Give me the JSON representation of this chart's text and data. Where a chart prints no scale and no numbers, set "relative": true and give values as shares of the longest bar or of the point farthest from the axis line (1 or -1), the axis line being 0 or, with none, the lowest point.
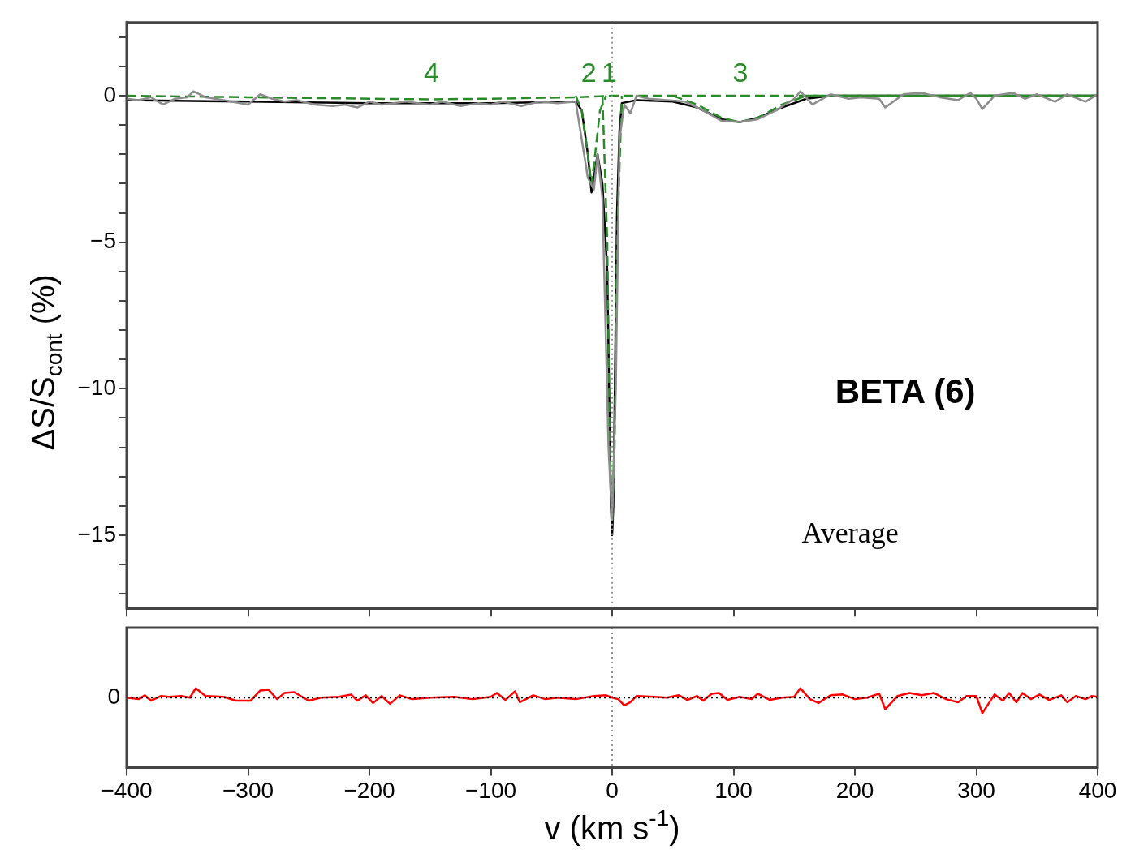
{
  "chart_data": [
    {
      "type": "line",
      "ylabel": "ΔS/S$_{cont}$ (%)",
      "xlim": [
        -400,
        400
      ],
      "xticks": [
        -400,
        -300,
        -200,
        -100,
        0,
        100,
        200,
        300,
        400
      ],
      "ylim": [
        -17.5,
        2.5
      ],
      "yticks": [
        {
          "value": -17,
          "label": null
        },
        {
          "value": -16,
          "label": null
        },
        -15,
        {
          "value": -14,
          "label": null
        },
        {
          "value": -13,
          "label": null
        },
        {
          "value": -12,
          "label": null
        },
        {
          "value": -11,
          "label": null
        },
        -10,
        {
          "value": -9,
          "label": null
        },
        {
          "value": -8,
          "label": null
        },
        {
          "value": -7,
          "label": null
        },
        {
          "value": -6,
          "label": null
        },
        -5,
        {
          "value": -4,
          "label": null
        },
        {
          "value": -3,
          "label": null
        },
        {
          "value": -2,
          "label": null
        },
        {
          "value": -1,
          "label": null
        },
        0,
        {
          "value": 1,
          "label": null
        },
        {
          "value": 2,
          "label": null
        }
      ],
      "tick_labels": "y",
      "marker": "none",
      "series": [
        {
          "color": "#8c8c8c",
          "x": [
            -400,
            -390,
            -380,
            -370,
            -360,
            -350,
            -345,
            -335,
            -320,
            -300,
            -290,
            -280,
            -270,
            -260,
            -245,
            -230,
            -220,
            -210,
            -200,
            -190,
            -180,
            -170,
            -160,
            -150,
            -140,
            -125,
            -110,
            -100,
            -90,
            -75,
            -60,
            -45,
            -30,
            -20,
            -15,
            -12,
            -8,
            -3,
            0,
            3,
            6,
            10,
            15,
            20,
            30,
            45,
            60,
            75,
            90,
            105,
            120,
            135,
            150,
            155,
            165,
            180,
            195,
            205,
            220,
            225,
            240,
            255,
            270,
            285,
            295,
            300,
            305,
            315,
            330,
            340,
            350,
            365,
            375,
            390,
            400
          ],
          "values": [
            -0.1,
            -0.15,
            -0.05,
            -0.3,
            -0.1,
            -0.05,
            0.15,
            -0.05,
            -0.15,
            -0.3,
            0.05,
            -0.1,
            -0.2,
            -0.15,
            -0.3,
            -0.35,
            -0.3,
            -0.4,
            -0.2,
            -0.3,
            -0.25,
            -0.2,
            -0.25,
            -0.3,
            -0.2,
            -0.35,
            -0.25,
            -0.3,
            -0.2,
            -0.35,
            -0.2,
            -0.25,
            -0.2,
            -2.8,
            -3.2,
            -2.0,
            -3.5,
            -12,
            -14.5,
            -10,
            -1.5,
            -0.3,
            -0.6,
            0,
            -0.1,
            -0.15,
            -0.2,
            -0.5,
            -0.85,
            -0.9,
            -0.8,
            -0.5,
            -0.1,
            0.15,
            -0.3,
            0.05,
            -0.1,
            -0.05,
            -0.1,
            -0.4,
            0.05,
            0.1,
            -0.05,
            -0.15,
            0.1,
            -0.1,
            -0.45,
            0,
            0.1,
            -0.1,
            0.05,
            -0.2,
            0.05,
            -0.2,
            0.05
          ]
        },
        {
          "color": "#2a8a2a",
          "line_style": "dashed",
          "x": [
            -400,
            -300,
            -200,
            -150,
            -100,
            -30,
            0,
            400
          ],
          "values": [
            0,
            -0.05,
            -0.1,
            -0.12,
            -0.1,
            -0.05,
            0,
            0
          ]
        },
        {
          "color": "#2a8a2a",
          "line_style": "dashed",
          "x": [
            -30,
            -25,
            -20,
            -17,
            -14,
            -10,
            -5
          ],
          "values": [
            0,
            -0.5,
            -2.0,
            -3.0,
            -2.0,
            -0.5,
            0
          ]
        },
        {
          "color": "#2a8a2a",
          "line_style": "dashed",
          "x": [
            -8,
            -4,
            -2,
            0,
            2,
            4,
            8
          ],
          "values": [
            0,
            -5,
            -12,
            -14.5,
            -12,
            -5,
            0
          ]
        },
        {
          "color": "#2a8a2a",
          "line_style": "dashed",
          "x": [
            50,
            70,
            90,
            105,
            120,
            140,
            160,
            400
          ],
          "values": [
            0,
            -0.3,
            -0.75,
            -0.9,
            -0.75,
            -0.3,
            0,
            0
          ]
        },
        {
          "color": "#000000",
          "x": [
            -400,
            -300,
            -200,
            -100,
            -30,
            -25,
            -20,
            -17,
            -12,
            -8,
            -4,
            -1,
            0,
            1,
            4,
            6,
            8,
            20,
            50,
            70,
            90,
            105,
            120,
            140,
            160,
            180,
            250,
            400
          ],
          "values": [
            -0.15,
            -0.2,
            -0.25,
            -0.25,
            -0.2,
            -0.5,
            -2.0,
            -3.3,
            -2.0,
            -3.0,
            -6,
            -14,
            -15,
            -14,
            -4,
            -1.2,
            -0.25,
            -0.15,
            -0.2,
            -0.4,
            -0.8,
            -0.9,
            -0.75,
            -0.4,
            -0.1,
            0,
            0,
            0
          ]
        }
      ],
      "ref_lines": [
        {
          "axis": "x",
          "value": 0,
          "color": "#999999",
          "line_style": "dotted"
        }
      ],
      "annotations": [
        "BETA (6)",
        "Average",
        "4",
        "2",
        "1",
        "3"
      ]
    },
    {
      "type": "line",
      "xlabel": "v (km s$^{-1}$)",
      "xlim": [
        -400,
        400
      ],
      "xticks": [
        -400,
        -300,
        -200,
        -100,
        0,
        100,
        200,
        300,
        400
      ],
      "relative": true,
      "tick_labels": "x",
      "marker": "none",
      "series": [
        {
          "color": "#ff0000",
          "x": [
            -400,
            -390,
            -385,
            -380,
            -372,
            -365,
            -355,
            -348,
            -343,
            -335,
            -320,
            -310,
            -298,
            -290,
            -283,
            -276,
            -270,
            -262,
            -250,
            -240,
            -225,
            -215,
            -210,
            -203,
            -197,
            -190,
            -183,
            -175,
            -165,
            -150,
            -130,
            -115,
            -100,
            -95,
            -88,
            -80,
            -76,
            -65,
            -55,
            -45,
            -30,
            -15,
            -5,
            0,
            5,
            10,
            15,
            20,
            35,
            45,
            55,
            62,
            70,
            75,
            82,
            88,
            95,
            105,
            115,
            120,
            130,
            140,
            150,
            155,
            163,
            170,
            180,
            190,
            200,
            210,
            220,
            225,
            235,
            245,
            255,
            265,
            275,
            285,
            292,
            300,
            305,
            315,
            322,
            327,
            333,
            338,
            345,
            352,
            360,
            370,
            375,
            382,
            390,
            395,
            400
          ],
          "values": [
            0,
            -0.1,
            0.15,
            -0.2,
            0.1,
            0.05,
            0.1,
            0,
            0.6,
            0.1,
            0.05,
            -0.2,
            -0.2,
            0.45,
            0.5,
            -0.1,
            0.3,
            0.35,
            -0.2,
            0,
            0.05,
            0.2,
            -0.2,
            0.15,
            -0.35,
            0.1,
            -0.4,
            0.15,
            -0.1,
            0,
            0.05,
            -0.1,
            0.05,
            0.3,
            -0.15,
            0.4,
            -0.3,
            0.15,
            -0.1,
            0,
            -0.1,
            0.1,
            0.15,
            0,
            -0.1,
            -0.5,
            -0.3,
            0.1,
            0.05,
            0,
            0.15,
            -0.15,
            0.1,
            -0.2,
            0.25,
            0.3,
            -0.15,
            0.05,
            -0.1,
            0.25,
            -0.15,
            0,
            0.05,
            0.6,
            -0.1,
            -0.35,
            0.15,
            0.2,
            -0.1,
            0,
            0.25,
            -0.75,
            0.1,
            0.3,
            0.15,
            0.3,
            -0.1,
            -0.3,
            0.1,
            0.1,
            -1,
            0.2,
            -0.2,
            0.3,
            -0.3,
            0.3,
            -0.1,
            0.2,
            -0.15,
            0.15,
            -0.3,
            0.1,
            -0.1,
            0.1,
            0.05
          ]
        }
      ],
      "ref_lines": [
        {
          "axis": "x",
          "value": 0,
          "color": "#999999",
          "line_style": "dotted"
        },
        {
          "axis": "y",
          "value": 0,
          "label": "0",
          "color": "#000000",
          "line_style": "dotted"
        }
      ]
    }
  ]
}
